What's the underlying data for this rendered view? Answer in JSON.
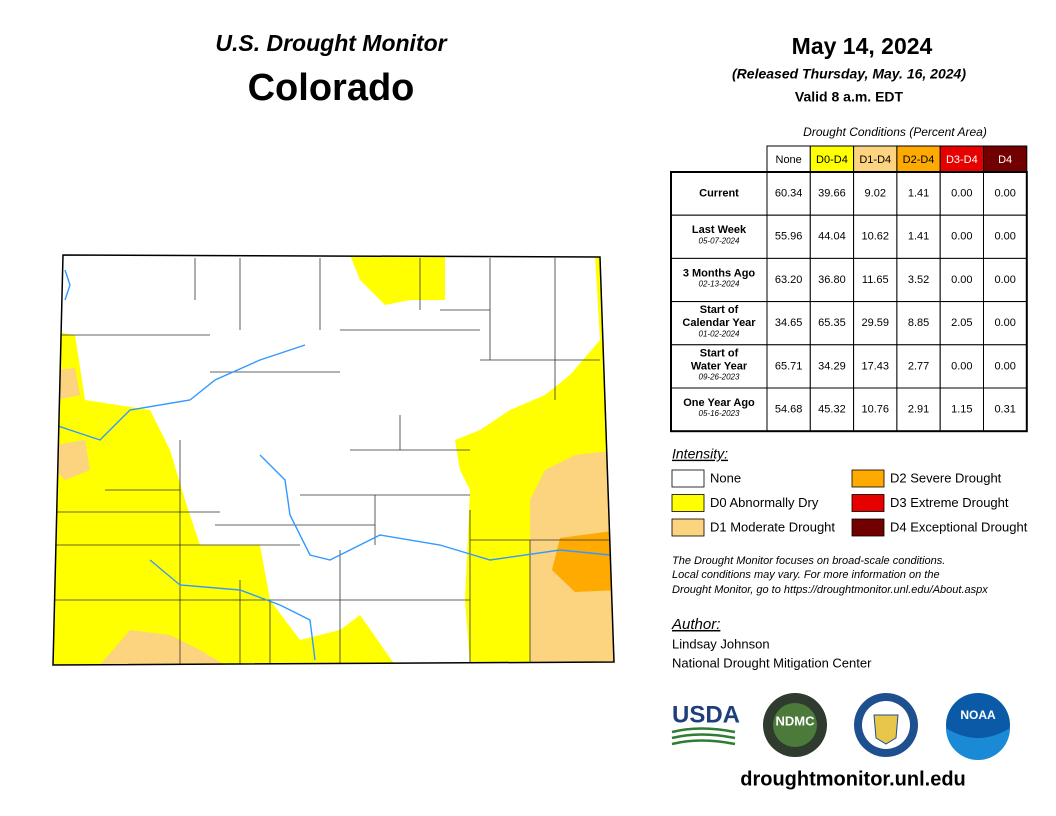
{
  "header": {
    "subtitle": "U.S. Drought Monitor",
    "title": "Colorado"
  },
  "dates": {
    "date": "May 14, 2024",
    "released": "(Released Thursday, May. 16, 2024)",
    "valid": "Valid 8 a.m. EDT"
  },
  "table": {
    "caption": "Drought Conditions (Percent Area)",
    "columns": [
      {
        "label": "None",
        "color": "#ffffff",
        "text": "#000000"
      },
      {
        "label": "D0-D4",
        "color": "#ffff00",
        "text": "#000000"
      },
      {
        "label": "D1-D4",
        "color": "#fcd37f",
        "text": "#000000"
      },
      {
        "label": "D2-D4",
        "color": "#ffaa00",
        "text": "#000000"
      },
      {
        "label": "D3-D4",
        "color": "#e60000",
        "text": "#ffffff"
      },
      {
        "label": "D4",
        "color": "#730000",
        "text": "#ffffff"
      }
    ],
    "rows": [
      {
        "label": [
          "Current"
        ],
        "values": [
          "60.34",
          "39.66",
          "9.02",
          "1.41",
          "0.00",
          "0.00"
        ]
      },
      {
        "label": [
          "Last Week"
        ],
        "date": "05-07-2024",
        "values": [
          "55.96",
          "44.04",
          "10.62",
          "1.41",
          "0.00",
          "0.00"
        ]
      },
      {
        "label": [
          "3 Months Ago"
        ],
        "date": "02-13-2024",
        "values": [
          "63.20",
          "36.80",
          "11.65",
          "3.52",
          "0.00",
          "0.00"
        ]
      },
      {
        "label": [
          "Start of",
          "Calendar Year"
        ],
        "date": "01-02-2024",
        "values": [
          "34.65",
          "65.35",
          "29.59",
          "8.85",
          "2.05",
          "0.00"
        ]
      },
      {
        "label": [
          "Start of",
          "Water Year"
        ],
        "date": "09-26-2023",
        "values": [
          "65.71",
          "34.29",
          "17.43",
          "2.77",
          "0.00",
          "0.00"
        ]
      },
      {
        "label": [
          "One Year Ago"
        ],
        "date": "05-16-2023",
        "values": [
          "54.68",
          "45.32",
          "10.76",
          "2.91",
          "1.15",
          "0.31"
        ]
      }
    ]
  },
  "legend": {
    "title": "Intensity:",
    "items": [
      {
        "label": "None",
        "color": "#ffffff"
      },
      {
        "label": "D0 Abnormally Dry",
        "color": "#ffff00"
      },
      {
        "label": "D1 Moderate Drought",
        "color": "#fcd37f"
      },
      {
        "label": "D2 Severe Drought",
        "color": "#ffaa00"
      },
      {
        "label": "D3 Extreme Drought",
        "color": "#e60000"
      },
      {
        "label": "D4 Exceptional Drought",
        "color": "#730000"
      }
    ]
  },
  "note": [
    "The Drought Monitor focuses on broad-scale conditions.",
    "Local conditions may vary. For more information on the",
    "Drought Monitor, go to https://droughtmonitor.unl.edu/About.aspx"
  ],
  "author": {
    "title": "Author:",
    "name": "Lindsay Johnson",
    "org": "National Drought Mitigation Center"
  },
  "logos": {
    "usda": "USDA",
    "ndmc": "NDMC",
    "noaa": "NOAA"
  },
  "url": "droughtmonitor.unl.edu"
}
